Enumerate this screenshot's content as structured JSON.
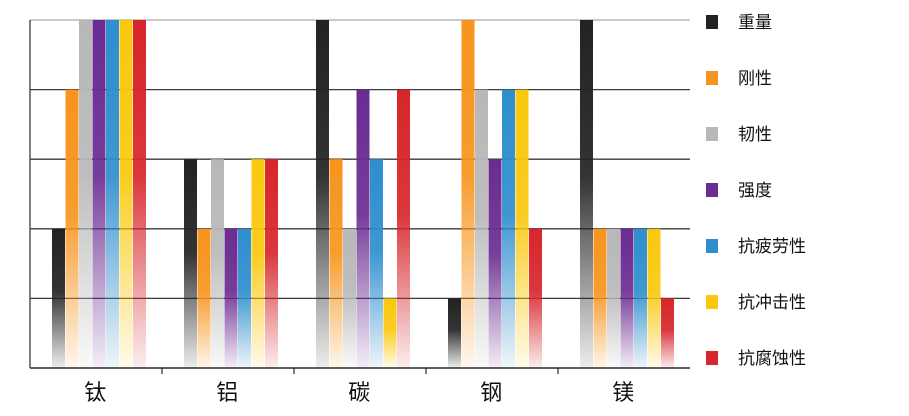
{
  "chart_data": {
    "type": "bar",
    "title": "",
    "xlabel": "",
    "ylabel": "",
    "categories": [
      "钛",
      "铝",
      "碳",
      "钢",
      "镁"
    ],
    "ylim": [
      0,
      5
    ],
    "grid": true,
    "legend_position": "right",
    "series": [
      {
        "name": "重量",
        "values": [
          2,
          3,
          5,
          1,
          5
        ],
        "color": "#222222"
      },
      {
        "name": "刚性",
        "values": [
          4,
          2,
          3,
          5,
          2
        ],
        "color": "#f7941d"
      },
      {
        "name": "韧性",
        "values": [
          5,
          3,
          2,
          4,
          2
        ],
        "color": "#b8b8b8"
      },
      {
        "name": "强度",
        "values": [
          5,
          2,
          4,
          3,
          2
        ],
        "color": "#6a2c91"
      },
      {
        "name": "抗疲劳性",
        "values": [
          5,
          2,
          3,
          4,
          2
        ],
        "color": "#2e8ece"
      },
      {
        "name": "抗冲击性",
        "values": [
          5,
          3,
          1,
          4,
          2
        ],
        "color": "#f9c80e"
      },
      {
        "name": "抗腐蚀性",
        "values": [
          5,
          3,
          4,
          2,
          1
        ],
        "color": "#d7262b"
      }
    ]
  }
}
